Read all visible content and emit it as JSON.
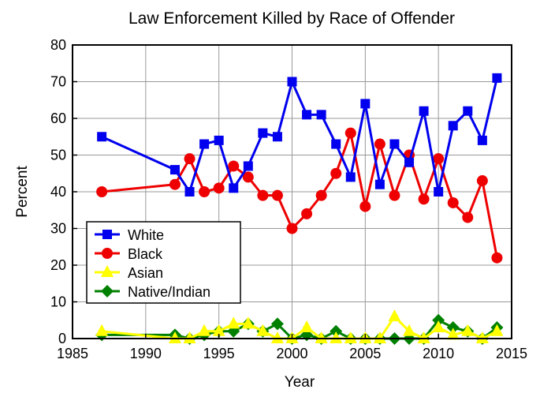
{
  "chart_data": {
    "type": "line",
    "title": "Law Enforcement Killed by Race of Offender",
    "xlabel": "Year",
    "ylabel": "Percent",
    "xlim": [
      1985,
      2015
    ],
    "ylim": [
      0,
      80
    ],
    "xticks": [
      1985,
      1990,
      1995,
      2000,
      2005,
      2010,
      2015
    ],
    "yticks": [
      0,
      10,
      20,
      30,
      40,
      50,
      60,
      70,
      80
    ],
    "grid": true,
    "legend_position": "bottom-left",
    "x": [
      1987,
      1992,
      1993,
      1994,
      1995,
      1996,
      1997,
      1998,
      1999,
      2000,
      2001,
      2002,
      2003,
      2004,
      2005,
      2006,
      2007,
      2008,
      2009,
      2010,
      2011,
      2012,
      2013,
      2014
    ],
    "series": [
      {
        "name": "White",
        "color": "#0000ee",
        "marker": "square",
        "values": [
          55,
          46,
          40,
          53,
          54,
          41,
          47,
          56,
          55,
          70,
          61,
          61,
          53,
          44,
          64,
          42,
          53,
          48,
          62,
          40,
          58,
          62,
          54,
          71
        ]
      },
      {
        "name": "Black",
        "color": "#ee0000",
        "marker": "circle",
        "values": [
          40,
          42,
          49,
          40,
          41,
          47,
          44,
          39,
          39,
          30,
          34,
          39,
          45,
          56,
          36,
          53,
          39,
          50,
          38,
          49,
          37,
          33,
          43,
          22
        ]
      },
      {
        "name": "Asian",
        "color": "#ffff00",
        "marker": "triangle",
        "values": [
          2,
          0,
          0,
          2,
          2,
          4,
          4,
          2,
          0,
          0,
          3,
          0,
          0,
          0,
          0,
          0,
          6,
          2,
          0,
          3,
          1,
          2,
          0,
          2
        ]
      },
      {
        "name": "Native/Indian",
        "color": "#008000",
        "marker": "diamond",
        "values": [
          1,
          1,
          0,
          1,
          2,
          2,
          4,
          2,
          4,
          0,
          1,
          0,
          2,
          0,
          0,
          0,
          0,
          0,
          0,
          5,
          3,
          2,
          0,
          3
        ]
      }
    ]
  }
}
